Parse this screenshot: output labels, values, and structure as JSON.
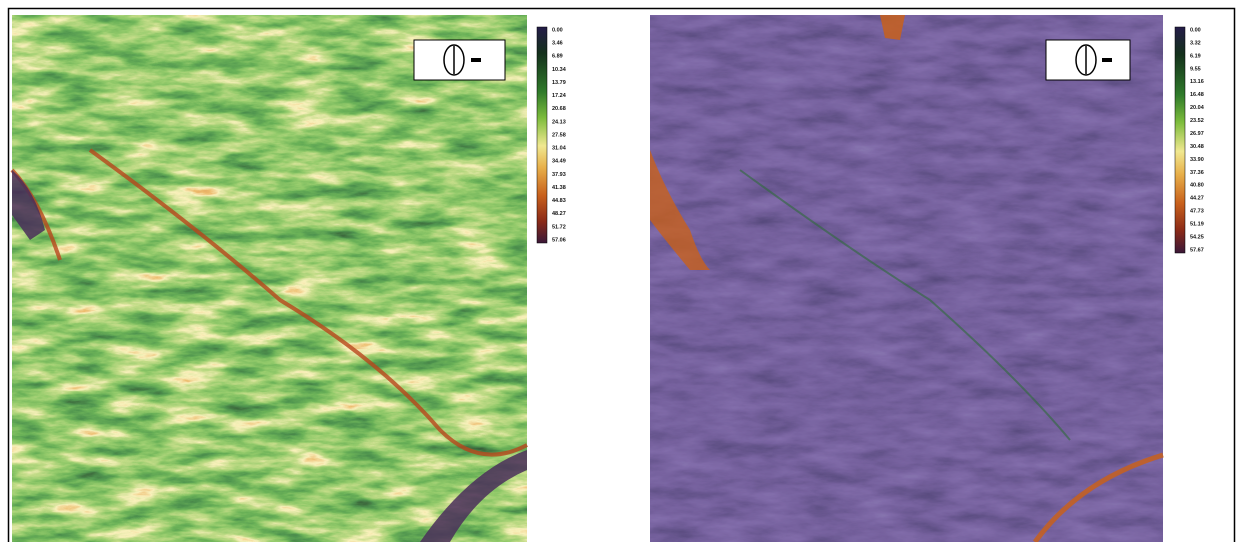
{
  "left_panel": {
    "legend": [
      "0.00",
      "3.46",
      "6.89",
      "10.34",
      "13.79",
      "17.24",
      "20.68",
      "24.13",
      "27.58",
      "31.04",
      "34.49",
      "37.93",
      "41.38",
      "44.83",
      "48.27",
      "51.72",
      "57.06"
    ]
  },
  "right_panel": {
    "legend": [
      "0.00",
      "3.32",
      "6.19",
      "9.55",
      "13.16",
      "16.48",
      "20.04",
      "23.52",
      "26.97",
      "30.48",
      "33.90",
      "37.36",
      "40.80",
      "44.27",
      "47.73",
      "51.19",
      "54.25",
      "57.67"
    ]
  }
}
